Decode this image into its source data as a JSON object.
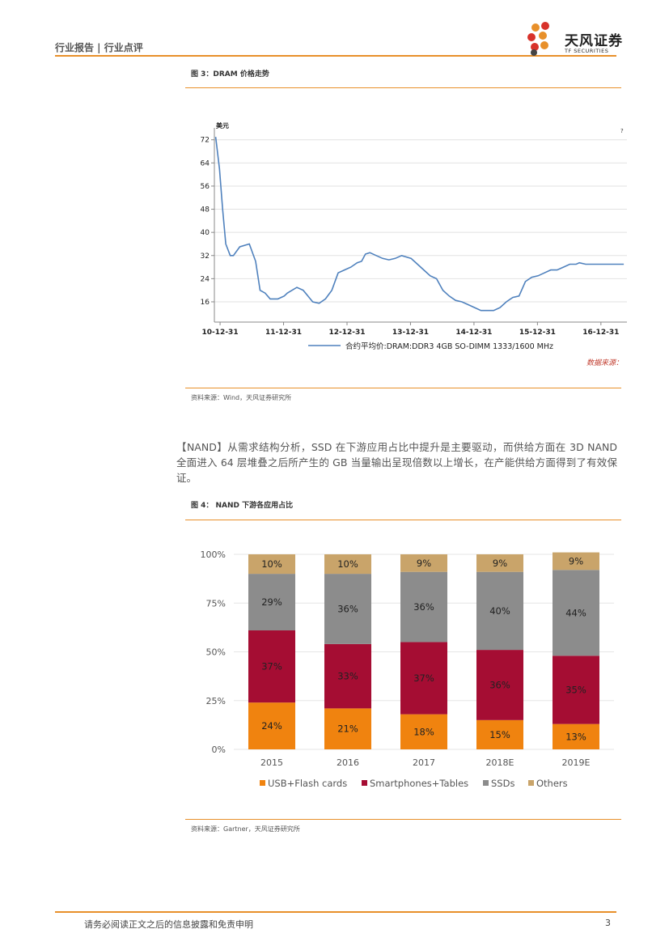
{
  "header": {
    "section": "行业报告 | 行业点评",
    "logo_cn": "天风证券",
    "logo_en": "TF SECURITIES"
  },
  "figure3": {
    "title": "图 3：DRAM 价格走势",
    "source": "资料来源：Wind，天风证券研究所",
    "corner_mark": "?",
    "data_source_label": "数据来源："
  },
  "paragraph": "【NAND】从需求结构分析，SSD 在下游应用占比中提升是主要驱动，而供给方面在 3D NAND 全面进入 64 层堆叠之后所产生的 GB 当量输出呈现倍数以上增长，在产能供给方面得到了有效保证。",
  "figure4": {
    "title": "图 4：  NAND 下游各应用占比",
    "source": "资料来源：Gartner，天风证券研究所"
  },
  "footer": {
    "text": "请务必阅读正文之后的信息披露和免责申明",
    "page": "3"
  },
  "colors": {
    "accent": "#e8902a",
    "line": "#4f81bd",
    "usb": "#f0830f",
    "smartphones": "#a50d33",
    "ssd": "#8c8c8c",
    "others": "#c9a46a"
  },
  "chart_data": [
    {
      "type": "line",
      "ylabel": "美元",
      "yticks": [
        16,
        24,
        32,
        40,
        48,
        56,
        64,
        72
      ],
      "ylim": [
        9,
        75
      ],
      "xticks": [
        "10-12-31",
        "11-12-31",
        "12-12-31",
        "13-12-31",
        "14-12-31",
        "15-12-31",
        "16-12-31"
      ],
      "xlim": [
        2010.9,
        2017.4
      ],
      "grid": true,
      "legend_position": "bottom",
      "series": [
        {
          "name": "合约平均价:DRAM:DDR3 4GB SO-DIMM 1333/1600 MHz",
          "x": [
            2010.92,
            2010.98,
            2011.03,
            2011.08,
            2011.15,
            2011.2,
            2011.3,
            2011.45,
            2011.55,
            2011.62,
            2011.7,
            2011.78,
            2011.9,
            2012.0,
            2012.05,
            2012.2,
            2012.3,
            2012.45,
            2012.55,
            2012.65,
            2012.75,
            2012.85,
            2012.95,
            2013.05,
            2013.15,
            2013.22,
            2013.28,
            2013.35,
            2013.45,
            2013.55,
            2013.65,
            2013.75,
            2013.85,
            2013.92,
            2014.0,
            2014.1,
            2014.2,
            2014.3,
            2014.4,
            2014.5,
            2014.6,
            2014.7,
            2014.8,
            2014.9,
            2015.0,
            2015.1,
            2015.2,
            2015.3,
            2015.4,
            2015.5,
            2015.6,
            2015.7,
            2015.8,
            2015.9,
            2016.0,
            2016.1,
            2016.2,
            2016.3,
            2016.4,
            2016.5,
            2016.6,
            2016.65,
            2016.75,
            2016.85,
            2016.95,
            2017.05,
            2017.15,
            2017.25,
            2017.35
          ],
          "y": [
            73,
            62,
            48,
            36,
            32,
            32,
            35,
            36,
            30,
            20,
            19,
            17,
            17,
            18,
            19,
            21,
            20,
            16,
            15.5,
            17,
            20,
            26,
            27,
            28,
            29.5,
            30,
            32.5,
            33,
            32,
            31,
            30.5,
            31,
            32,
            31.5,
            31,
            29,
            27,
            25,
            24,
            20,
            18,
            16.5,
            16,
            15,
            14,
            13,
            13,
            13,
            14,
            16,
            17.5,
            18,
            23,
            24.5,
            25,
            26,
            27,
            27,
            28,
            29,
            29,
            29.5,
            29,
            29,
            29,
            29,
            29,
            29,
            29
          ]
        }
      ]
    },
    {
      "type": "bar",
      "stacked": true,
      "categories": [
        "2015",
        "2016",
        "2017",
        "2018E",
        "2019E"
      ],
      "yticks": [
        "0%",
        "25%",
        "50%",
        "75%",
        "100%"
      ],
      "ylim": [
        0,
        100
      ],
      "legend_position": "bottom",
      "series": [
        {
          "name": "USB+Flash cards",
          "values": [
            24,
            21,
            18,
            15,
            13
          ]
        },
        {
          "name": "Smartphones+Tables",
          "values": [
            37,
            33,
            37,
            36,
            35
          ]
        },
        {
          "name": "SSDs",
          "values": [
            29,
            36,
            36,
            40,
            44
          ]
        },
        {
          "name": "Others",
          "values": [
            10,
            10,
            9,
            9,
            9
          ]
        }
      ]
    }
  ]
}
